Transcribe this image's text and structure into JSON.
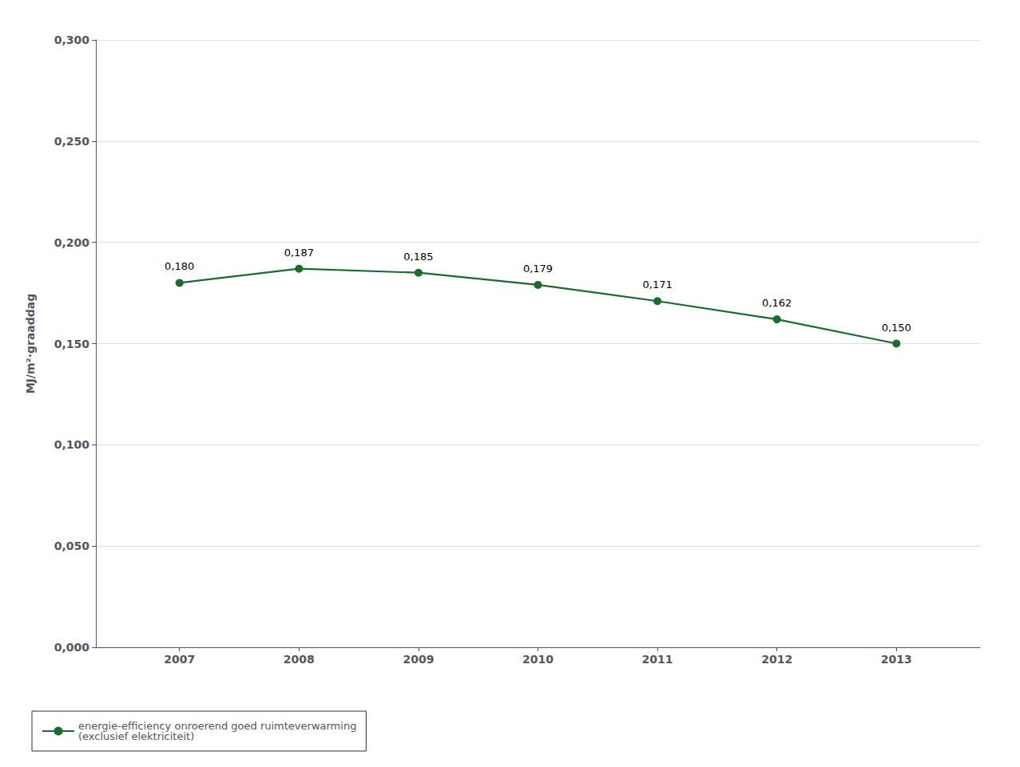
{
  "chart_data": {
    "type": "line",
    "x": [
      2007,
      2008,
      2009,
      2010,
      2011,
      2012,
      2013
    ],
    "series": [
      {
        "name": "energie-efficiency onroerend goed ruimteverwarming\n(exclusief elektriciteit)",
        "color": "#1a6b2f",
        "marker": "circle",
        "values": [
          0.18,
          0.187,
          0.185,
          0.179,
          0.171,
          0.162,
          0.15
        ],
        "value_labels": [
          "0,180",
          "0,187",
          "0,185",
          "0,179",
          "0,171",
          "0,162",
          "0,150"
        ]
      }
    ],
    "ylabel": "MJ/m²·graaddag",
    "xlim": [
      2006.3,
      2013.7
    ],
    "xticks": [
      2007,
      2008,
      2009,
      2010,
      2011,
      2012,
      2013
    ],
    "ylim": [
      0.0,
      0.3
    ],
    "yticks": [
      {
        "value": 0.0,
        "label": "0,000"
      },
      {
        "value": 0.05,
        "label": "0,050"
      },
      {
        "value": 0.1,
        "label": "0,100"
      },
      {
        "value": 0.15,
        "label": "0,150"
      },
      {
        "value": 0.2,
        "label": "0,200"
      },
      {
        "value": 0.25,
        "label": "0,250"
      },
      {
        "value": 0.3,
        "label": "0,300"
      }
    ],
    "grid": "y",
    "legend": "lower left",
    "data_labels": true
  }
}
